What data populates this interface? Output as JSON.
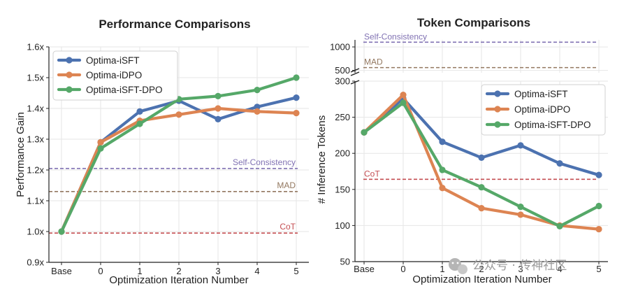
{
  "chart_data": [
    {
      "type": "line",
      "title": "Performance Comparisons",
      "xlabel": "Optimization Iteration Number",
      "ylabel": "Performance Gain",
      "categories": [
        "Base",
        "0",
        "1",
        "2",
        "3",
        "4",
        "5"
      ],
      "ylim": [
        0.9,
        1.6
      ],
      "yticks": [
        0.9,
        1.0,
        1.1,
        1.2,
        1.3,
        1.4,
        1.5,
        1.6
      ],
      "ytick_labels": [
        "0.9x",
        "1.0x",
        "1.1x",
        "1.2x",
        "1.3x",
        "1.4x",
        "1.5x",
        "1.6x"
      ],
      "series": [
        {
          "name": "Optima-iSFT",
          "color": "#4C72B0",
          "values": [
            1.0,
            1.29,
            1.39,
            1.425,
            1.365,
            1.405,
            1.435
          ]
        },
        {
          "name": "Optima-iDPO",
          "color": "#DD8452",
          "values": [
            1.0,
            1.29,
            1.36,
            1.38,
            1.4,
            1.39,
            1.385
          ]
        },
        {
          "name": "Optima-iSFT-DPO",
          "color": "#55A868",
          "values": [
            1.0,
            1.27,
            1.35,
            1.43,
            1.44,
            1.46,
            1.5
          ]
        }
      ],
      "reference_lines": [
        {
          "label": "Self-Consistency",
          "value": 1.205,
          "color": "#8172B3"
        },
        {
          "label": "MAD",
          "value": 1.13,
          "color": "#937860"
        },
        {
          "label": "CoT",
          "value": 0.995,
          "color": "#C44E52"
        }
      ],
      "legend": "top-left",
      "grid": true
    },
    {
      "type": "line",
      "title": "Token Comparisons",
      "xlabel": "Optimization Iteration Number",
      "ylabel": "# Inference Tokens",
      "categories": [
        "Base",
        "0",
        "1",
        "2",
        "3",
        "4",
        "5"
      ],
      "ylim": [
        50,
        300
      ],
      "yticks": [
        50,
        100,
        150,
        200,
        250,
        300
      ],
      "broken_axis": {
        "upper_ticks": [
          500,
          1000
        ],
        "upper_range": [
          450,
          1150
        ]
      },
      "series": [
        {
          "name": "Optima-iSFT",
          "color": "#4C72B0",
          "values": [
            229,
            276,
            216,
            194,
            211,
            186,
            170
          ]
        },
        {
          "name": "Optima-iDPO",
          "color": "#DD8452",
          "values": [
            229,
            281,
            152,
            124,
            115,
            100,
            95
          ]
        },
        {
          "name": "Optima-iSFT-DPO",
          "color": "#55A868",
          "values": [
            229,
            270,
            177,
            153,
            126,
            99,
            127
          ]
        }
      ],
      "reference_lines": [
        {
          "label": "Self-Consistency",
          "value": 1100,
          "color": "#8172B3",
          "panel": "upper"
        },
        {
          "label": "MAD",
          "value": 560,
          "color": "#937860",
          "panel": "upper"
        },
        {
          "label": "CoT",
          "value": 164,
          "color": "#C44E52",
          "panel": "lower"
        }
      ],
      "legend": "top-right",
      "grid": true
    }
  ],
  "watermark": {
    "text": "公众号 · 传神社区",
    "icon": "wechat-icon"
  }
}
